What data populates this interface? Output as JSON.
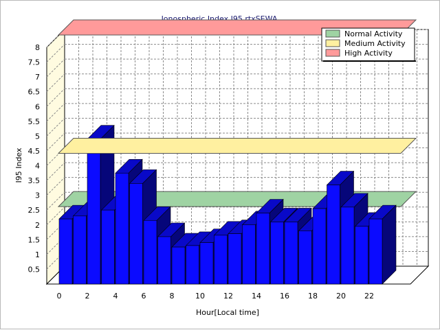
{
  "chart_data": {
    "type": "bar",
    "title": "Ionospheric Index I95 rtxSEWA",
    "xlabel": "Hour[Local time]",
    "ylabel": "I95 Index",
    "ylim": [
      0,
      8
    ],
    "yticks": [
      "0.5",
      "1",
      "1.5",
      "2",
      "2.5",
      "3",
      "3.5",
      "4",
      "4.5",
      "5",
      "5.5",
      "6",
      "6.5",
      "7",
      "7.5",
      "8"
    ],
    "xticks": [
      "0",
      "2",
      "4",
      "6",
      "8",
      "10",
      "12",
      "14",
      "16",
      "18",
      "20",
      "22"
    ],
    "x": [
      0,
      1,
      2,
      3,
      4,
      5,
      6,
      7,
      8,
      9,
      10,
      11,
      12,
      13,
      14,
      15,
      16,
      17,
      18,
      19,
      20,
      21,
      22,
      23
    ],
    "values": [
      2.2,
      2.3,
      4.9,
      2.5,
      3.75,
      3.4,
      2.15,
      1.6,
      1.25,
      1.3,
      1.4,
      1.65,
      1.7,
      2.0,
      2.4,
      2.1,
      2.1,
      1.8,
      2.55,
      3.35,
      2.6,
      1.95,
      2.2,
      null
    ],
    "bar_color": "#0b0bff",
    "bar_side_color": "#06067a",
    "bar_top_color": "#0909c8",
    "grid": true,
    "bands": [
      {
        "name": "Normal Activity",
        "value": 2.2,
        "color": "#9fd3a3"
      },
      {
        "name": "Medium Activity",
        "value": 4.0,
        "color": "#fff0a0"
      },
      {
        "name": "High Activity",
        "value": 8.0,
        "color": "#ff9a9a"
      }
    ],
    "legend_position": "top-right"
  }
}
